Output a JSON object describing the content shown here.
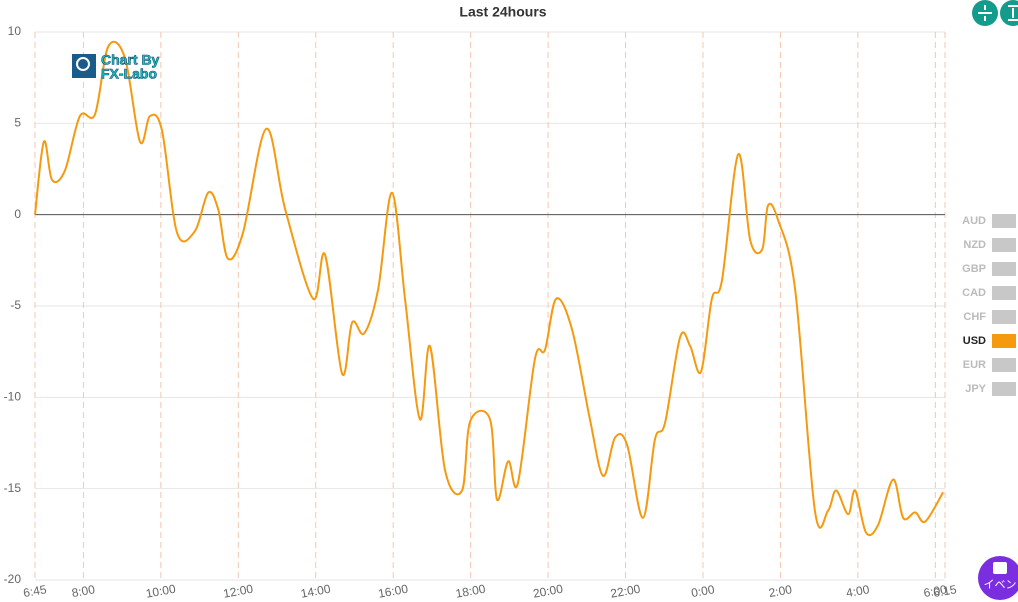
{
  "chart_data": {
    "type": "line",
    "title": "Last 24hours",
    "x": [
      6.75,
      6.98,
      7.19,
      7.52,
      7.91,
      8.3,
      8.64,
      9.07,
      9.46,
      9.72,
      10.03,
      10.42,
      10.88,
      11.22,
      11.48,
      11.73,
      12.12,
      12.72,
      13.21,
      13.93,
      14.24,
      14.68,
      14.94,
      15.25,
      15.61,
      15.97,
      16.31,
      16.69,
      16.95,
      17.34,
      17.78,
      17.99,
      18.5,
      18.68,
      18.97,
      19.22,
      19.66,
      19.92,
      20.21,
      20.62,
      21.08,
      21.42,
      21.73,
      22.04,
      22.45,
      22.76,
      23.02,
      23.41,
      23.67,
      23.95,
      24.23,
      24.49,
      24.91,
      25.22,
      25.53,
      25.68,
      25.94,
      26.38,
      26.89,
      27.23,
      27.44,
      27.75,
      27.93,
      28.21,
      28.52,
      28.91,
      29.17,
      29.48,
      29.74,
      30.2
    ],
    "series": [
      {
        "name": "USD",
        "color": "#f59a0f",
        "values": [
          0,
          4.0,
          1.9,
          2.4,
          5.4,
          5.5,
          9.2,
          8.6,
          4.0,
          5.4,
          4.6,
          -1.0,
          -0.9,
          1.2,
          0.3,
          -2.4,
          -1.0,
          4.7,
          0.3,
          -4.6,
          -2.2,
          -8.7,
          -5.9,
          -6.5,
          -4.1,
          1.2,
          -4.7,
          -11.2,
          -7.2,
          -14.0,
          -15.1,
          -11.3,
          -11.2,
          -15.6,
          -13.5,
          -14.7,
          -7.9,
          -7.4,
          -4.6,
          -6.3,
          -11.2,
          -14.3,
          -12.2,
          -12.6,
          -16.6,
          -12.3,
          -11.4,
          -6.7,
          -7.2,
          -8.6,
          -4.6,
          -3.6,
          3.3,
          -1.4,
          -1.9,
          0.5,
          -0.3,
          -4.1,
          -16.2,
          -16.2,
          -15.1,
          -16.4,
          -15.1,
          -17.4,
          -17.0,
          -14.5,
          -16.6,
          -16.3,
          -16.8,
          -15.2
        ]
      }
    ],
    "legend_items": [
      "AUD",
      "NZD",
      "GBP",
      "CAD",
      "CHF",
      "USD",
      "EUR",
      "JPY"
    ],
    "inactive_color": "#c8c8c8",
    "xlim": [
      6.75,
      30.25
    ],
    "xticks": [
      {
        "value": 6.75,
        "label": "6:45"
      },
      {
        "value": 8,
        "label": "8:00"
      },
      {
        "value": 10,
        "label": "10:00"
      },
      {
        "value": 12,
        "label": "12:00"
      },
      {
        "value": 14,
        "label": "14:00"
      },
      {
        "value": 16,
        "label": "16:00"
      },
      {
        "value": 18,
        "label": "18:00"
      },
      {
        "value": 20,
        "label": "20:00"
      },
      {
        "value": 22,
        "label": "22:00"
      },
      {
        "value": 24,
        "label": "0:00"
      },
      {
        "value": 26,
        "label": "2:00"
      },
      {
        "value": 28,
        "label": "4:00"
      },
      {
        "value": 30,
        "label": "6:00"
      },
      {
        "value": 30.25,
        "label": "6:15"
      }
    ],
    "ylim": [
      -20,
      10
    ],
    "yticks": [
      -20,
      -15,
      -10,
      -5,
      0,
      5,
      10
    ],
    "grid": true
  },
  "watermark": [
    "Chart By",
    "FX-Labo"
  ],
  "event_button": "イベン"
}
